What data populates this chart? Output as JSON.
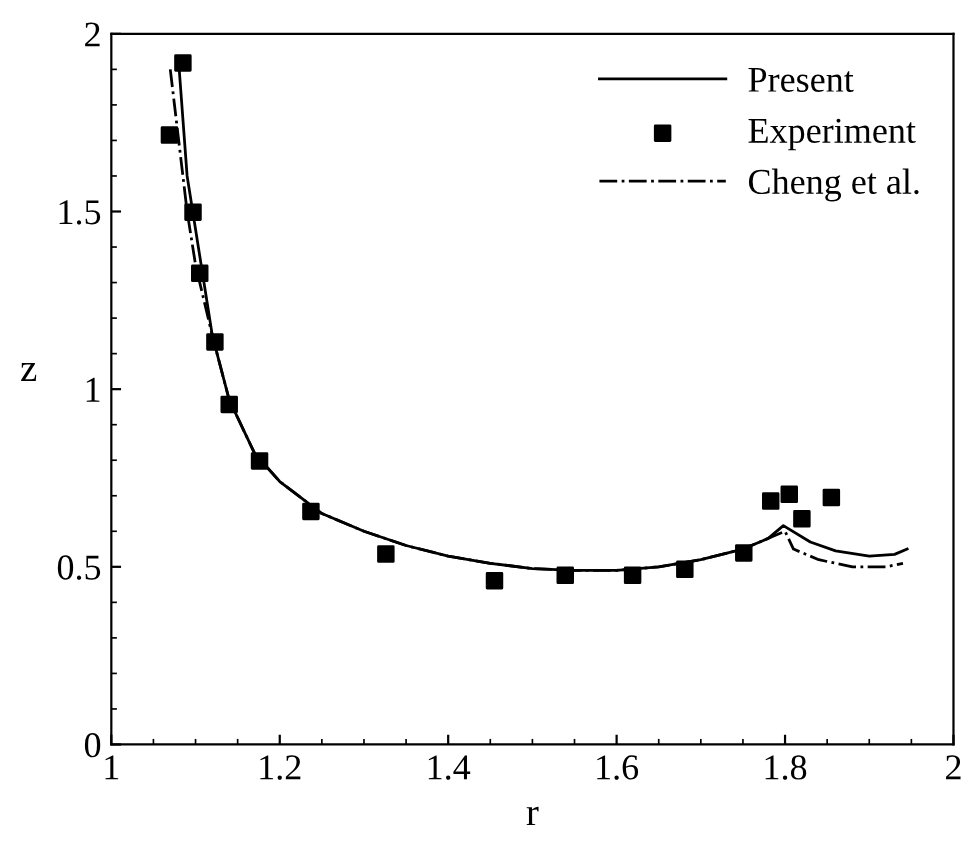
{
  "chart_data": {
    "type": "line",
    "xlabel": "r",
    "ylabel": "z",
    "xlim": [
      1,
      2
    ],
    "ylim": [
      0,
      2
    ],
    "xticks": [
      1,
      1.2,
      1.4,
      1.6,
      1.8,
      2
    ],
    "yticks": [
      0,
      0.5,
      1,
      1.5,
      2
    ],
    "legend": "top right",
    "grid": false,
    "series": [
      {
        "name": "Present",
        "color": "#000000",
        "line_style": "solid",
        "x": [
          1.08,
          1.09,
          1.1,
          1.11,
          1.12,
          1.14,
          1.17,
          1.2,
          1.25,
          1.3,
          1.35,
          1.4,
          1.45,
          1.5,
          1.55,
          1.6,
          1.65,
          1.7,
          1.75,
          1.78,
          1.798,
          1.83,
          1.86,
          1.9,
          1.93,
          1.945
        ],
        "values": [
          1.92,
          1.6,
          1.45,
          1.3,
          1.15,
          0.97,
          0.82,
          0.74,
          0.65,
          0.6,
          0.56,
          0.53,
          0.51,
          0.495,
          0.49,
          0.49,
          0.5,
          0.52,
          0.55,
          0.58,
          0.616,
          0.57,
          0.545,
          0.53,
          0.535,
          0.55
        ]
      },
      {
        "name": "Experiment",
        "type": "scatter",
        "color": "#000000",
        "marker": "square",
        "x": [
          1.069,
          1.085,
          1.097,
          1.105,
          1.123,
          1.14,
          1.176,
          1.237,
          1.326,
          1.455,
          1.539,
          1.619,
          1.681,
          1.751,
          1.783,
          1.805,
          1.82,
          1.855
        ],
        "values": [
          1.715,
          1.918,
          1.498,
          1.326,
          1.133,
          0.957,
          0.798,
          0.656,
          0.536,
          0.461,
          0.476,
          0.476,
          0.493,
          0.539,
          0.685,
          0.704,
          0.635,
          0.695
        ]
      },
      {
        "name": "Cheng et al.",
        "color": "#000000",
        "line_style": "dashdot",
        "x": [
          1.07,
          1.08,
          1.09,
          1.1,
          1.12,
          1.14,
          1.17,
          1.2,
          1.25,
          1.3,
          1.35,
          1.4,
          1.45,
          1.5,
          1.55,
          1.6,
          1.65,
          1.7,
          1.75,
          1.79,
          1.8,
          1.81,
          1.84,
          1.88,
          1.92,
          1.94
        ],
        "values": [
          1.9,
          1.7,
          1.5,
          1.35,
          1.15,
          0.97,
          0.82,
          0.74,
          0.65,
          0.6,
          0.56,
          0.53,
          0.51,
          0.495,
          0.49,
          0.49,
          0.5,
          0.52,
          0.55,
          0.59,
          0.6,
          0.55,
          0.52,
          0.5,
          0.5,
          0.51
        ]
      }
    ]
  }
}
